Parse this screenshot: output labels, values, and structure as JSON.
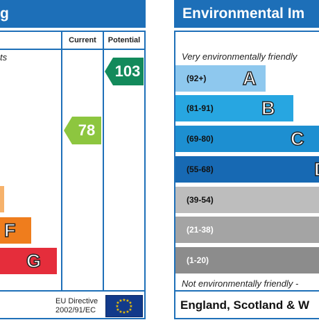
{
  "left": {
    "header_fragment": "g",
    "subtitle_fragment": "ts",
    "columns": {
      "current": "Current",
      "potential": "Potential"
    },
    "bands": [
      {
        "letter": "F",
        "color": "#ef7d1d"
      },
      {
        "letter": "G",
        "color": "#e52d3b"
      }
    ],
    "band_e_color": "#f6b26b",
    "current": {
      "value": "78",
      "color": "#8dc63f"
    },
    "potential": {
      "value": "103",
      "color": "#138a5b"
    },
    "footer": {
      "directive_line1": "EU Directive",
      "directive_line2": "2002/91/EC"
    }
  },
  "right": {
    "header": "Environmental Im",
    "top_note": "Very environmentally friendly",
    "bottom_note": "Not environmentally friendly -",
    "bands": [
      {
        "range": "(92+)",
        "letter": "A",
        "color": "#8ec8ee",
        "range_color": "#111"
      },
      {
        "range": "(81-91)",
        "letter": "B",
        "color": "#27a6e1",
        "range_color": "#111"
      },
      {
        "range": "(69-80)",
        "letter": "C",
        "color": "#1d8fd1",
        "range_color": "#111"
      },
      {
        "range": "(55-68)",
        "letter": "D",
        "color": "#1769b3",
        "range_color": "#111"
      },
      {
        "range": "(39-54)",
        "letter": "",
        "color": "#bdbdbd",
        "range_color": "#111"
      },
      {
        "range": "(21-38)",
        "letter": "",
        "color": "#a4a4a4",
        "range_color": "#fff"
      },
      {
        "range": "(1-20)",
        "letter": "",
        "color": "#8c8c8c",
        "range_color": "#fff"
      }
    ],
    "footer": "England, Scotland & W"
  }
}
